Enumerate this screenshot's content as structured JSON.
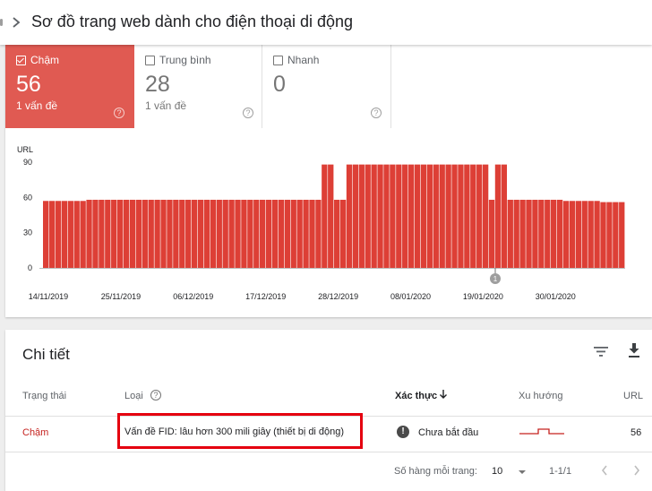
{
  "header": {
    "title": "Sơ đồ trang web dành cho điện thoại di động"
  },
  "summary": {
    "slow": {
      "label": "Chậm",
      "count": "56",
      "issues": "1 vấn đề"
    },
    "medium": {
      "label": "Trung bình",
      "count": "28",
      "issues": "1 vấn đề"
    },
    "fast": {
      "label": "Nhanh",
      "count": "0"
    }
  },
  "colors": {
    "slow": "#e05a52",
    "bar": "#dd3f36",
    "slow_text": "#c5221f"
  },
  "chart_data": {
    "type": "bar",
    "ylabel": "URL",
    "ylim": [
      0,
      90
    ],
    "yticks": [
      "0",
      "30",
      "60",
      "90"
    ],
    "xtick_labels": [
      "14/11/2019",
      "25/11/2019",
      "06/12/2019",
      "17/12/2019",
      "28/12/2019",
      "08/01/2020",
      "19/01/2020",
      "30/01/2020"
    ],
    "annotation": "1",
    "series": [
      {
        "values": [
          57,
          57,
          57,
          57,
          57,
          57,
          57,
          58,
          58,
          58,
          58,
          58,
          58,
          58,
          58,
          58,
          58,
          58,
          58,
          58,
          58,
          58,
          58,
          58,
          58,
          58,
          58,
          58,
          58,
          58,
          58,
          58,
          58,
          58,
          58,
          58,
          58,
          58,
          58,
          58,
          58,
          58,
          58,
          58,
          58,
          88,
          88,
          58,
          58,
          88,
          88,
          88,
          88,
          88,
          88,
          88,
          88,
          88,
          88,
          88,
          88,
          88,
          88,
          88,
          88,
          88,
          88,
          88,
          88,
          88,
          88,
          88,
          58,
          88,
          88,
          58,
          58,
          58,
          58,
          58,
          58,
          58,
          58,
          58,
          57,
          57,
          57,
          57,
          57,
          57,
          56,
          56,
          56,
          56
        ]
      }
    ]
  },
  "details": {
    "title": "Chi tiết",
    "columns": {
      "status": "Trạng thái",
      "type": "Loại",
      "validation": "Xác thực",
      "trend": "Xu hướng",
      "url": "URL"
    },
    "row": {
      "status": "Chậm",
      "type": "Vấn đề FID: lâu hơn 300 mili giây (thiết bị di động)",
      "validation": "Chưa bắt đầu",
      "url": "56"
    },
    "footer": {
      "rows_label": "Số hàng mỗi trang:",
      "rows_value": "10",
      "range": "1-1/1"
    }
  },
  "icons": {
    "header": "chevron-right-icon",
    "details_actions": [
      "filter-icon",
      "download-icon"
    ],
    "sort": "arrow-down-icon",
    "validation": "alert-icon",
    "pagination": [
      "chevron-left-icon",
      "chevron-right-icon"
    ]
  }
}
